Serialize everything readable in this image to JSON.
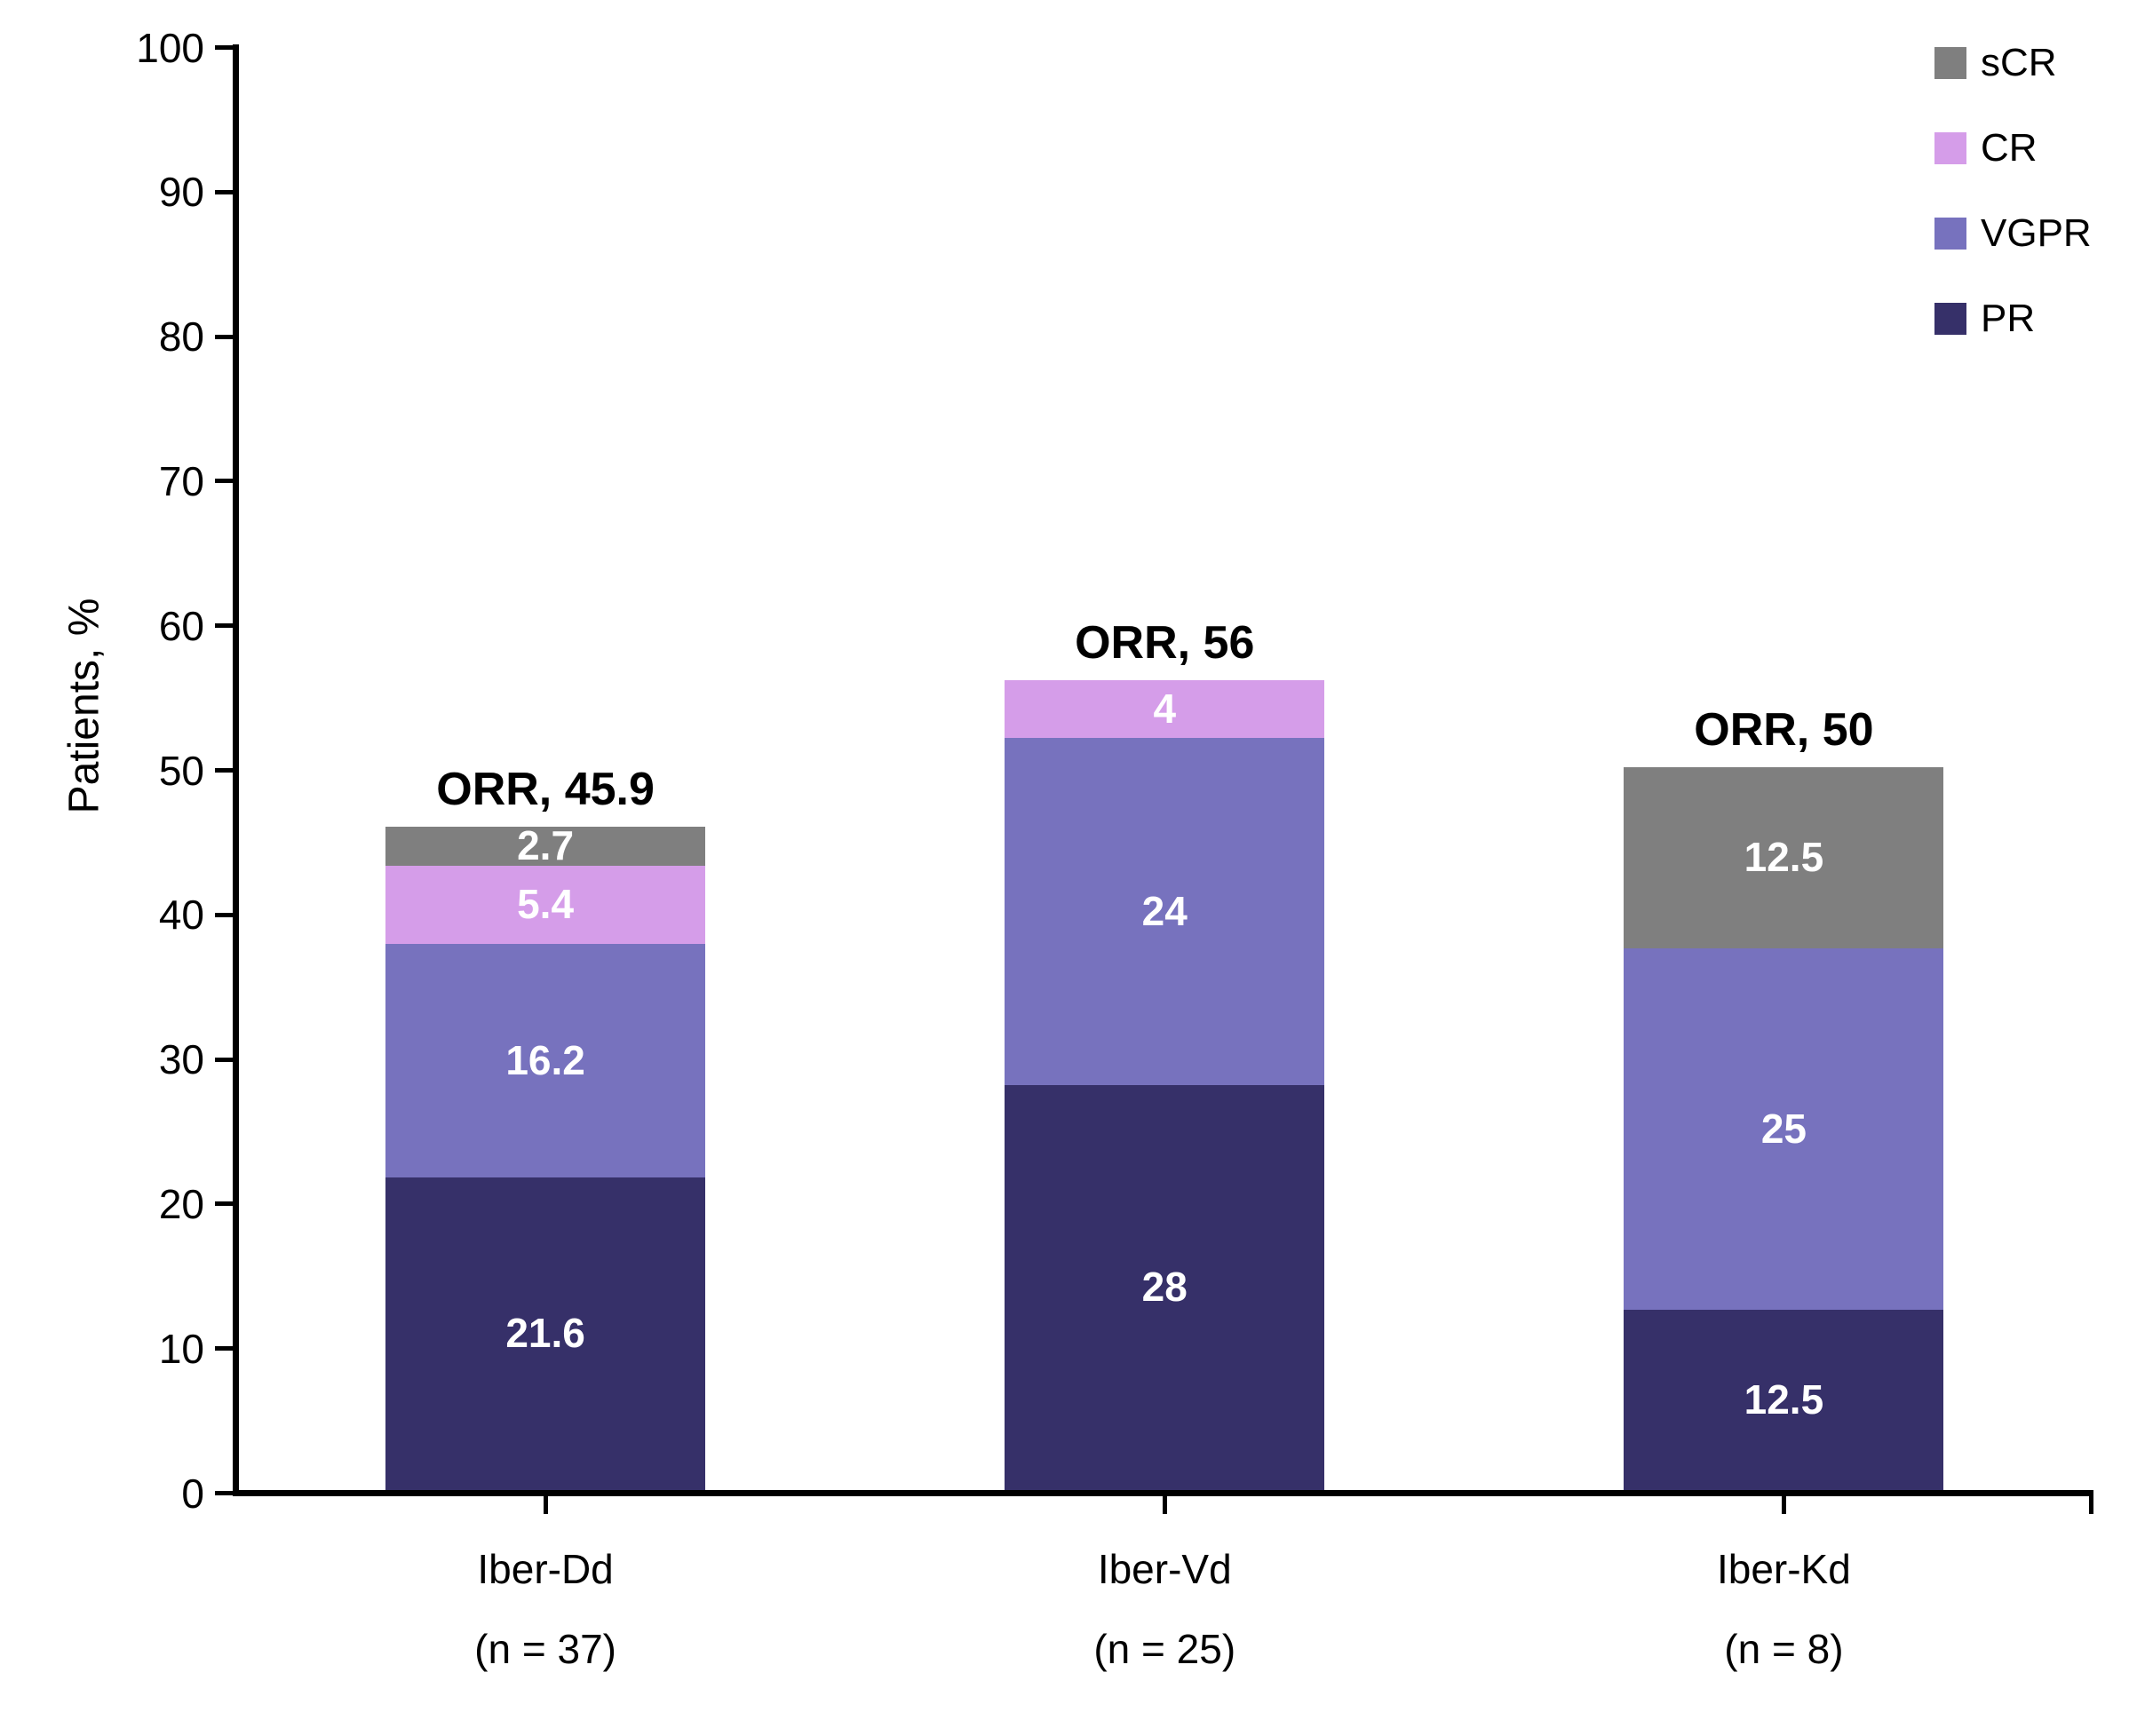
{
  "chart_data": {
    "type": "bar",
    "stacked": true,
    "title": "",
    "ylabel": "Patients, %",
    "ylim": [
      0,
      100
    ],
    "yticks": [
      0,
      10,
      20,
      30,
      40,
      50,
      60,
      70,
      80,
      90,
      100
    ],
    "grid": false,
    "legend_position": "top-right",
    "legend_order": [
      "sCR",
      "CR",
      "VGPR",
      "PR"
    ],
    "categories": [
      {
        "label": "Iber-Dd",
        "sublabel": "(n = 37)",
        "orr_label": "ORR, 45.9",
        "orr": 45.9
      },
      {
        "label": "Iber-Vd",
        "sublabel": "(n = 25)",
        "orr_label": "ORR, 56",
        "orr": 56
      },
      {
        "label": "Iber-Kd",
        "sublabel": "(n = 8)",
        "orr_label": "ORR, 50",
        "orr": 50
      }
    ],
    "series": [
      {
        "name": "PR",
        "color": "#363069",
        "values": [
          21.6,
          28,
          12.5
        ]
      },
      {
        "name": "VGPR",
        "color": "#7772BE",
        "values": [
          16.2,
          24,
          25
        ]
      },
      {
        "name": "CR",
        "color": "#D59DE9",
        "values": [
          5.4,
          4,
          0
        ]
      },
      {
        "name": "sCR",
        "color": "#7F7F7F",
        "values": [
          2.7,
          0,
          12.5
        ]
      }
    ],
    "colors": {
      "axis": "#000000",
      "text": "#000000",
      "bar_value_label": "#FFFFFF"
    }
  }
}
